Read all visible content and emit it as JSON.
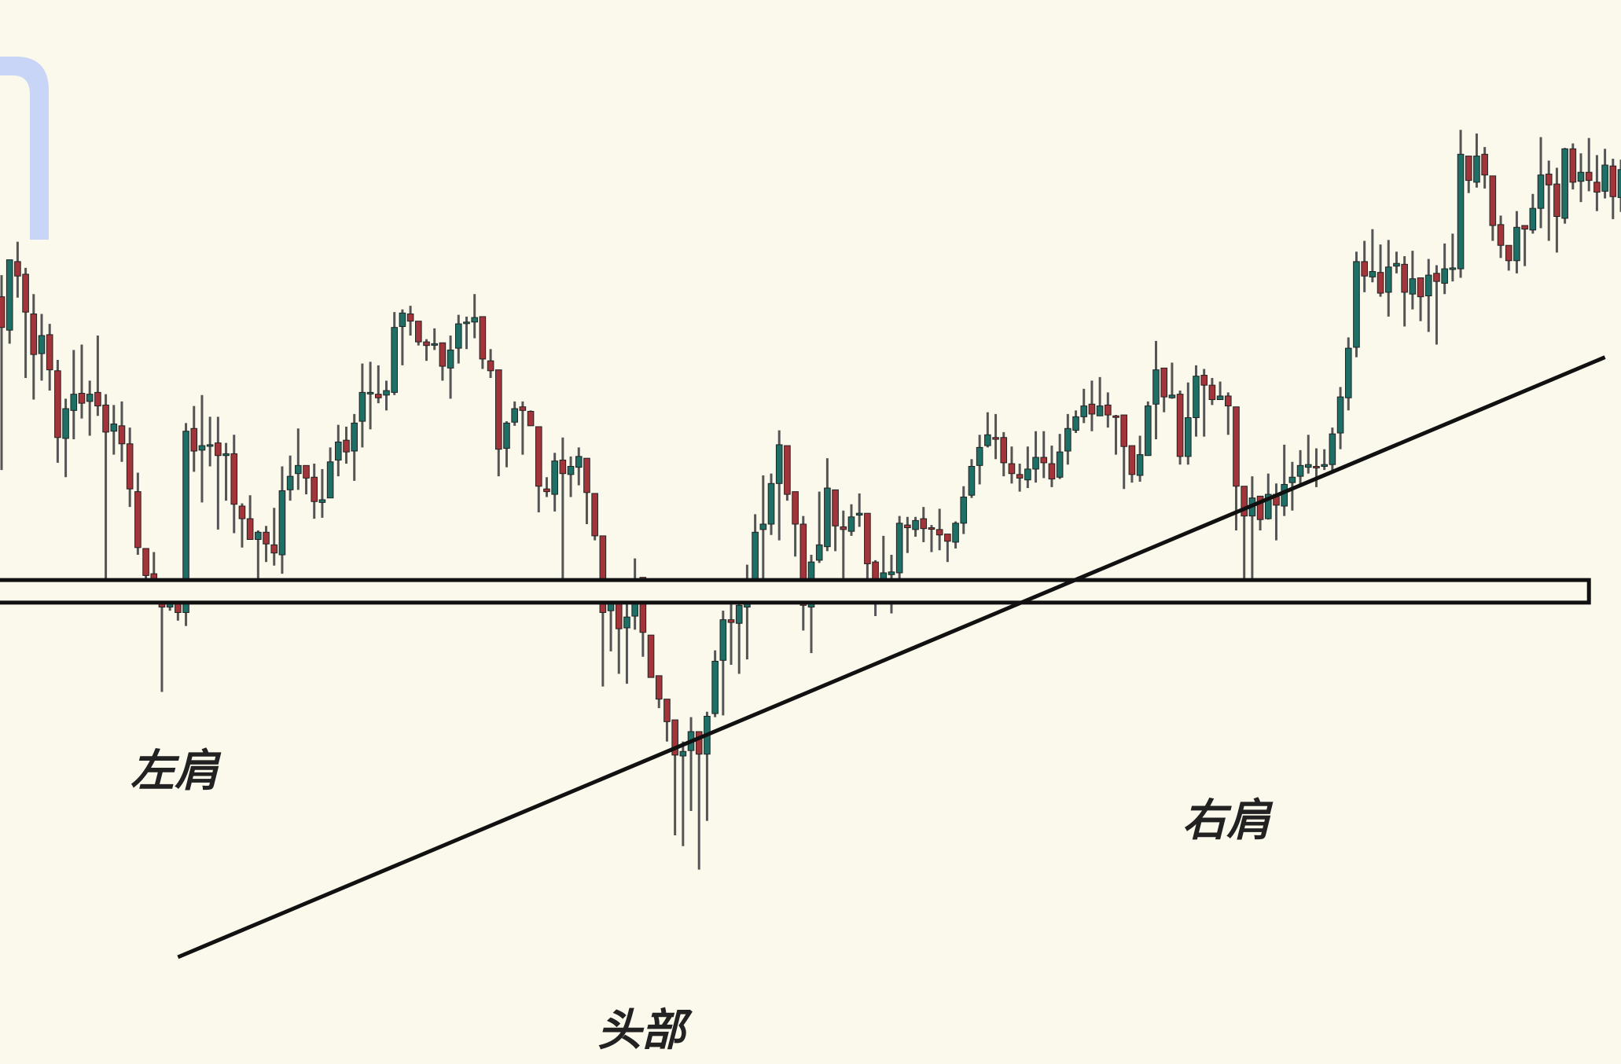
{
  "colors": {
    "background": "#fbf9ec",
    "bullish": "#1e6f66",
    "bearish": "#a3343a",
    "wick": "#555555",
    "line": "#111111",
    "watermark": "#c9d5f6",
    "label": "#222222"
  },
  "chart_data": {
    "type": "candlestick",
    "title": "",
    "xlabel": "",
    "ylabel": "",
    "grid": false,
    "ylim": [
      0,
      100
    ],
    "pattern": "inverse-head-and-shoulders",
    "annotations": [
      {
        "text": "左肩",
        "x": 22,
        "y": 28
      },
      {
        "text": "头部",
        "x": 80,
        "y": 2.5
      },
      {
        "text": "右肩",
        "x": 152,
        "y": 24
      }
    ],
    "neckline_zone": {
      "low": 39.3,
      "high": 41.8,
      "x_end": 198
    },
    "trendline": {
      "x1": 22,
      "y1": 0,
      "x2": 200,
      "y2": 66.5
    },
    "candles": [
      [
        0.0,
        73.2,
        69.8,
        75.6,
        54.0
      ],
      [
        1.0,
        69.5,
        77.3,
        77.3,
        68.0
      ],
      [
        2.0,
        77.1,
        75.5,
        79.3,
        73.1
      ],
      [
        3.0,
        75.7,
        71.5,
        76.4,
        64.2
      ],
      [
        4.0,
        71.3,
        66.8,
        73.5,
        61.8
      ],
      [
        5.0,
        66.9,
        68.9,
        71.3,
        63.9
      ],
      [
        6.0,
        69.0,
        65.1,
        70.2,
        62.8
      ],
      [
        7.0,
        65.0,
        57.6,
        66.2,
        54.8
      ],
      [
        8.0,
        57.5,
        60.8,
        61.9,
        53.2
      ],
      [
        9.0,
        60.6,
        62.4,
        67.3,
        57.4
      ],
      [
        10.0,
        62.5,
        61.4,
        67.9,
        59.7
      ],
      [
        11.0,
        61.6,
        62.4,
        63.9,
        57.8
      ],
      [
        12.0,
        62.6,
        61.1,
        68.9,
        60.0
      ],
      [
        13.0,
        61.2,
        58.2,
        62.4,
        39.9
      ],
      [
        14.0,
        58.3,
        59.1,
        61.2,
        55.7
      ],
      [
        15.0,
        58.9,
        56.9,
        61.6,
        54.9
      ],
      [
        16.0,
        56.9,
        51.9,
        58.7,
        49.9
      ],
      [
        17.0,
        51.6,
        45.4,
        53.7,
        44.6
      ],
      [
        18.0,
        45.3,
        42.3,
        45.2,
        40.4
      ],
      [
        19.0,
        42.5,
        40.6,
        44.9,
        40.5
      ],
      [
        20.0,
        40.4,
        38.8,
        41.5,
        29.4
      ],
      [
        21.0,
        38.8,
        39.8,
        40.2,
        38.4
      ],
      [
        22.0,
        39.8,
        38.2,
        40.8,
        37.3
      ],
      [
        23.0,
        38.2,
        58.3,
        59.2,
        36.7
      ],
      [
        24.0,
        58.6,
        56.1,
        61.1,
        53.8
      ],
      [
        25.0,
        56.2,
        56.7,
        62.3,
        50.4
      ],
      [
        26.0,
        56.7,
        56.8,
        59.9,
        54.4
      ],
      [
        27.0,
        57.0,
        55.6,
        59.9,
        47.4
      ],
      [
        28.0,
        55.6,
        55.8,
        57.0,
        50.6
      ],
      [
        29.0,
        55.8,
        50.2,
        57.9,
        47.0
      ],
      [
        30.0,
        50.0,
        48.6,
        50.3,
        45.4
      ],
      [
        31.0,
        48.6,
        46.3,
        51.2,
        46.3
      ],
      [
        32.0,
        46.3,
        47.1,
        47.3,
        40.4
      ],
      [
        33.0,
        47.1,
        45.8,
        47.8,
        43.8
      ],
      [
        34.0,
        45.7,
        44.8,
        49.8,
        43.4
      ],
      [
        35.0,
        44.6,
        51.7,
        54.4,
        42.5
      ],
      [
        36.0,
        51.8,
        53.3,
        55.6,
        50.6
      ],
      [
        37.0,
        53.6,
        54.5,
        58.6,
        51.8
      ],
      [
        38.0,
        54.5,
        53.1,
        54.5,
        51.3
      ],
      [
        39.0,
        53.2,
        50.5,
        54.7,
        48.6
      ],
      [
        40.0,
        50.4,
        50.7,
        54.1,
        48.7
      ],
      [
        41.0,
        50.9,
        54.9,
        56.5,
        51.0
      ],
      [
        42.0,
        55.1,
        57.1,
        59.0,
        53.3
      ],
      [
        43.0,
        57.3,
        56.0,
        58.8,
        54.7
      ],
      [
        44.0,
        56.1,
        59.2,
        60.2,
        52.8
      ],
      [
        45.0,
        59.4,
        62.6,
        65.8,
        56.5
      ],
      [
        46.0,
        62.6,
        62.6,
        66.0,
        58.5
      ],
      [
        47.0,
        62.4,
        62.0,
        65.6,
        61.4
      ],
      [
        48.0,
        62.3,
        62.8,
        63.9,
        60.6
      ],
      [
        49.0,
        62.6,
        69.8,
        71.5,
        62.3
      ],
      [
        50.0,
        69.9,
        71.4,
        71.8,
        65.6
      ],
      [
        51.0,
        71.3,
        70.5,
        72.2,
        68.9
      ],
      [
        52.0,
        70.5,
        68.2,
        70.1,
        67.8
      ],
      [
        53.0,
        68.2,
        67.8,
        68.5,
        66.1
      ],
      [
        54.0,
        68.0,
        68.0,
        69.7,
        67.3
      ],
      [
        55.0,
        68.1,
        65.5,
        67.6,
        63.9
      ],
      [
        56.0,
        65.3,
        67.3,
        68.9,
        61.9
      ],
      [
        57.0,
        67.5,
        70.2,
        71.2,
        65.8
      ],
      [
        58.0,
        70.4,
        70.4,
        71.0,
        67.4
      ],
      [
        59.0,
        70.4,
        70.9,
        73.5,
        68.6
      ],
      [
        60.0,
        71.0,
        66.3,
        69.7,
        65.2
      ],
      [
        61.0,
        66.1,
        65.0,
        67.4,
        64.2
      ],
      [
        62.0,
        65.1,
        56.3,
        64.9,
        53.3
      ],
      [
        63.0,
        56.4,
        59.2,
        59.4,
        54.3
      ],
      [
        64.0,
        59.3,
        60.8,
        61.6,
        58.9
      ],
      [
        65.0,
        61.0,
        60.6,
        61.6,
        55.7
      ],
      [
        66.0,
        60.5,
        58.9,
        60.6,
        58.9
      ],
      [
        67.0,
        58.8,
        52.2,
        58.5,
        49.3
      ],
      [
        68.0,
        51.9,
        51.6,
        53.2,
        51.0
      ],
      [
        69.0,
        51.3,
        55.0,
        55.9,
        49.4
      ],
      [
        70.0,
        55.1,
        53.6,
        57.6,
        40.7
      ],
      [
        71.0,
        53.5,
        54.4,
        55.5,
        51.0
      ],
      [
        72.0,
        54.3,
        55.5,
        56.5,
        52.3
      ],
      [
        73.0,
        55.3,
        51.5,
        53.3,
        48.0
      ],
      [
        74.0,
        51.4,
        46.7,
        50.3,
        46.2
      ],
      [
        75.0,
        46.7,
        38.2,
        45.9,
        30.0
      ],
      [
        76.0,
        38.4,
        40.7,
        41.4,
        33.9
      ],
      [
        77.0,
        40.7,
        36.4,
        40.4,
        31.4
      ],
      [
        78.0,
        36.5,
        37.7,
        40.0,
        30.3
      ],
      [
        79.0,
        37.8,
        41.9,
        44.2,
        36.3
      ],
      [
        80.0,
        42.1,
        36.0,
        41.2,
        33.3
      ],
      [
        81.0,
        35.7,
        31.0,
        33.5,
        31.0
      ],
      [
        82.0,
        31.2,
        28.6,
        31.1,
        27.6
      ],
      [
        83.0,
        28.6,
        26.1,
        26.8,
        23.9
      ],
      [
        84.0,
        26.3,
        22.4,
        24.6,
        13.5
      ],
      [
        85.0,
        22.3,
        22.8,
        23.9,
        12.3
      ],
      [
        86.0,
        22.9,
        25.0,
        26.6,
        16.2
      ],
      [
        87.0,
        25.0,
        22.5,
        25.0,
        9.7
      ],
      [
        88.0,
        22.5,
        26.7,
        27.2,
        15.1
      ],
      [
        89.0,
        27.0,
        32.8,
        34.0,
        26.6
      ],
      [
        90.0,
        32.9,
        37.4,
        38.4,
        26.8
      ],
      [
        91.0,
        37.4,
        37.1,
        39.8,
        32.4
      ],
      [
        92.0,
        37.0,
        39.0,
        39.6,
        31.4
      ],
      [
        93.0,
        38.8,
        40.5,
        43.5,
        33.0
      ],
      [
        94.0,
        40.6,
        47.1,
        49.1,
        39.4
      ],
      [
        95.0,
        47.4,
        48.0,
        53.4,
        40.3
      ],
      [
        96.0,
        48.0,
        52.5,
        53.6,
        46.8
      ],
      [
        97.0,
        52.5,
        56.8,
        58.4,
        46.2
      ],
      [
        98.0,
        56.7,
        51.3,
        56.4,
        50.6
      ],
      [
        99.0,
        51.6,
        48.0,
        51.5,
        44.4
      ],
      [
        100.0,
        48.0,
        39.0,
        48.9,
        36.2
      ],
      [
        101.0,
        38.8,
        43.8,
        44.6,
        33.7
      ],
      [
        102.0,
        44.0,
        45.7,
        51.6,
        43.7
      ],
      [
        103.0,
        45.5,
        52.0,
        55.3,
        45.0
      ],
      [
        104.0,
        51.8,
        47.8,
        51.5,
        45.0
      ],
      [
        105.0,
        47.7,
        47.4,
        49.5,
        42.0
      ],
      [
        106.0,
        47.2,
        48.8,
        50.2,
        46.7
      ],
      [
        107.0,
        49.0,
        49.2,
        51.4,
        47.7
      ],
      [
        108.0,
        49.2,
        43.6,
        48.8,
        40.0
      ],
      [
        109.0,
        43.8,
        41.6,
        44.0,
        37.8
      ],
      [
        110.0,
        41.7,
        42.6,
        46.7,
        39.6
      ],
      [
        111.0,
        42.4,
        42.7,
        44.6,
        38.1
      ],
      [
        112.0,
        42.6,
        48.1,
        48.9,
        41.1
      ],
      [
        113.0,
        47.9,
        47.6,
        48.8,
        44.8
      ],
      [
        114.0,
        47.4,
        48.4,
        48.8,
        46.6
      ],
      [
        115.0,
        48.6,
        47.5,
        49.9,
        46.0
      ],
      [
        116.0,
        47.6,
        47.5,
        47.9,
        44.9
      ],
      [
        117.0,
        47.4,
        46.8,
        49.7,
        45.1
      ],
      [
        118.0,
        46.9,
        46.1,
        46.9,
        43.8
      ],
      [
        119.0,
        46.0,
        48.1,
        48.3,
        45.3
      ],
      [
        120.0,
        48.1,
        51.0,
        52.2,
        46.9
      ],
      [
        121.0,
        51.2,
        54.4,
        55.2,
        50.9
      ],
      [
        122.0,
        54.5,
        56.5,
        57.9,
        52.4
      ],
      [
        123.0,
        56.7,
        57.9,
        60.4,
        56.5
      ],
      [
        124.0,
        57.6,
        57.4,
        60.2,
        55.2
      ],
      [
        125.0,
        57.6,
        54.8,
        58.2,
        53.3
      ],
      [
        126.0,
        54.7,
        53.6,
        56.6,
        52.5
      ],
      [
        127.0,
        53.5,
        53.1,
        54.7,
        51.6
      ],
      [
        128.0,
        52.9,
        54.1,
        56.6,
        52.0
      ],
      [
        129.0,
        54.1,
        55.4,
        58.3,
        52.6
      ],
      [
        130.0,
        55.4,
        54.8,
        58.3,
        53.1
      ],
      [
        131.0,
        54.7,
        53.0,
        56.7,
        52.1
      ],
      [
        132.0,
        53.2,
        56.0,
        58.0,
        53.0
      ],
      [
        133.0,
        56.1,
        58.6,
        60.2,
        54.6
      ],
      [
        134.0,
        58.4,
        59.9,
        60.6,
        58.1
      ],
      [
        135.0,
        59.9,
        61.1,
        63.0,
        59.2
      ],
      [
        136.0,
        61.3,
        60.2,
        63.9,
        58.3
      ],
      [
        137.0,
        60.0,
        61.1,
        64.3,
        60.7
      ],
      [
        138.0,
        61.2,
        60.1,
        62.6,
        58.7
      ],
      [
        139.0,
        60.0,
        59.9,
        60.1,
        55.7
      ],
      [
        140.0,
        60.1,
        56.6,
        58.9,
        51.9
      ],
      [
        141.0,
        56.7,
        53.5,
        56.3,
        52.6
      ],
      [
        142.0,
        53.4,
        55.7,
        57.8,
        52.7
      ],
      [
        143.0,
        55.6,
        61.1,
        61.6,
        55.6
      ],
      [
        144.0,
        61.3,
        65.1,
        68.3,
        57.4
      ],
      [
        145.0,
        65.3,
        62.1,
        64.6,
        60.4
      ],
      [
        146.0,
        62.0,
        62.3,
        65.9,
        61.9
      ],
      [
        147.0,
        62.4,
        55.5,
        62.8,
        54.6
      ],
      [
        148.0,
        55.5,
        59.8,
        63.7,
        54.6
      ],
      [
        149.0,
        59.8,
        64.4,
        65.6,
        57.7
      ],
      [
        150.0,
        64.5,
        63.4,
        65.2,
        57.7
      ],
      [
        151.0,
        63.4,
        61.8,
        64.2,
        61.2
      ],
      [
        152.0,
        61.8,
        62.2,
        63.8,
        61.8
      ],
      [
        153.0,
        62.2,
        61.1,
        62.6,
        57.9
      ],
      [
        154.0,
        61.0,
        52.2,
        60.9,
        47.3
      ],
      [
        155.0,
        52.2,
        48.9,
        51.2,
        40.6
      ],
      [
        156.0,
        48.9,
        50.9,
        53.3,
        39.4
      ],
      [
        157.0,
        51.1,
        48.5,
        51.0,
        47.3
      ],
      [
        158.0,
        48.6,
        51.3,
        53.6,
        48.5
      ],
      [
        159.0,
        51.3,
        50.1,
        52.5,
        46.2
      ],
      [
        160.0,
        50.0,
        52.4,
        56.8,
        48.9
      ],
      [
        161.0,
        52.6,
        53.2,
        54.9,
        49.5
      ],
      [
        162.0,
        53.3,
        54.5,
        56.2,
        52.1
      ],
      [
        163.0,
        54.3,
        54.6,
        57.9,
        53.6
      ],
      [
        164.0,
        54.4,
        54.3,
        56.4,
        52.1
      ],
      [
        165.0,
        54.4,
        54.6,
        56.3,
        54.0
      ],
      [
        166.0,
        54.6,
        58.0,
        58.7,
        53.8
      ],
      [
        167.0,
        58.1,
        62.1,
        63.2,
        56.3
      ],
      [
        168.0,
        62.0,
        67.5,
        68.7,
        60.6
      ],
      [
        169.0,
        67.6,
        77.1,
        78.2,
        66.5
      ],
      [
        170.0,
        77.1,
        75.5,
        79.4,
        73.7
      ],
      [
        171.0,
        75.4,
        76.0,
        80.7,
        74.8
      ],
      [
        172.0,
        75.9,
        73.6,
        79.0,
        73.2
      ],
      [
        173.0,
        73.7,
        76.5,
        79.5,
        71.0
      ],
      [
        174.0,
        76.6,
        76.9,
        78.2,
        75.8
      ],
      [
        175.0,
        76.8,
        73.7,
        77.7,
        69.9
      ],
      [
        176.0,
        73.5,
        75.2,
        78.3,
        71.8
      ],
      [
        177.0,
        75.3,
        73.2,
        75.1,
        70.5
      ],
      [
        178.0,
        73.3,
        75.6,
        77.4,
        69.3
      ],
      [
        179.0,
        75.8,
        74.9,
        76.7,
        67.9
      ],
      [
        180.0,
        74.7,
        76.3,
        79.1,
        73.5
      ],
      [
        181.0,
        76.3,
        76.4,
        80.2,
        74.9
      ],
      [
        182.0,
        76.3,
        89.0,
        91.7,
        75.3
      ],
      [
        183.0,
        88.8,
        86.1,
        88.8,
        84.7
      ],
      [
        184.0,
        85.9,
        88.8,
        91.3,
        85.3
      ],
      [
        185.0,
        89.0,
        86.7,
        89.8,
        85.2
      ],
      [
        186.0,
        86.6,
        81.1,
        86.0,
        79.4
      ],
      [
        187.0,
        81.2,
        78.9,
        82.2,
        77.5
      ],
      [
        188.0,
        78.9,
        77.2,
        77.8,
        76.1
      ],
      [
        189.0,
        77.2,
        80.9,
        82.7,
        75.8
      ],
      [
        190.0,
        81.1,
        80.7,
        81.1,
        76.6
      ],
      [
        191.0,
        80.6,
        83.0,
        84.6,
        80.2
      ],
      [
        192.0,
        83.0,
        86.7,
        90.9,
        80.8
      ],
      [
        193.0,
        86.8,
        85.6,
        88.3,
        79.4
      ],
      [
        194.0,
        85.7,
        82.1,
        87.5,
        78.1
      ],
      [
        195.0,
        81.9,
        89.6,
        89.7,
        81.3
      ],
      [
        196.0,
        89.6,
        85.9,
        90.2,
        85.1
      ],
      [
        197.0,
        86.0,
        87.0,
        89.1,
        83.7
      ],
      [
        198.0,
        87.0,
        86.1,
        90.8,
        84.9
      ],
      [
        199.0,
        85.9,
        84.8,
        88.9,
        82.7
      ],
      [
        200.0,
        84.9,
        87.8,
        89.6,
        84.1
      ],
      [
        201.0,
        87.7,
        84.3,
        88.5,
        81.8
      ],
      [
        202.0,
        84.2,
        87.3,
        88.4,
        82.6
      ]
    ]
  }
}
